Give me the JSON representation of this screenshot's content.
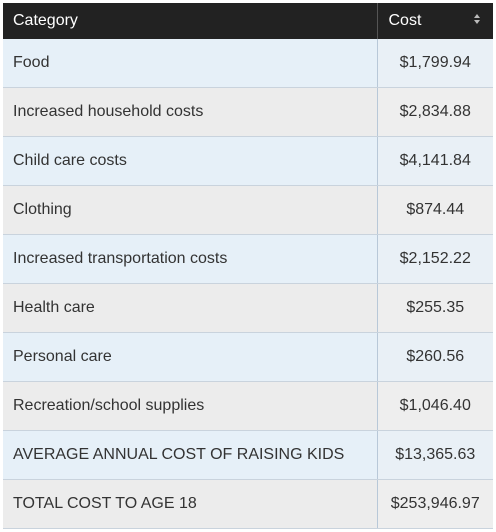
{
  "table": {
    "headers": {
      "category": "Category",
      "cost": "Cost"
    },
    "rows": [
      {
        "category": "Food",
        "cost": "$1,799.94"
      },
      {
        "category": "Increased household costs",
        "cost": "$2,834.88"
      },
      {
        "category": "Child care costs",
        "cost": "$4,141.84"
      },
      {
        "category": "Clothing",
        "cost": "$874.44"
      },
      {
        "category": "Increased transportation costs",
        "cost": "$2,152.22"
      },
      {
        "category": "Health care",
        "cost": "$255.35"
      },
      {
        "category": "Personal care",
        "cost": "$260.56"
      },
      {
        "category": "Recreation/school supplies",
        "cost": "$1,046.40"
      },
      {
        "category": "AVERAGE ANNUAL COST OF RAISING KIDS",
        "cost": "$13,365.63"
      },
      {
        "category": "TOTAL COST TO AGE 18",
        "cost": "$253,946.97"
      }
    ],
    "sort_icon": "sort-updown-icon",
    "colors": {
      "header_bg": "#222222",
      "row_odd": "#e6f0f8",
      "row_even": "#ececec"
    }
  }
}
